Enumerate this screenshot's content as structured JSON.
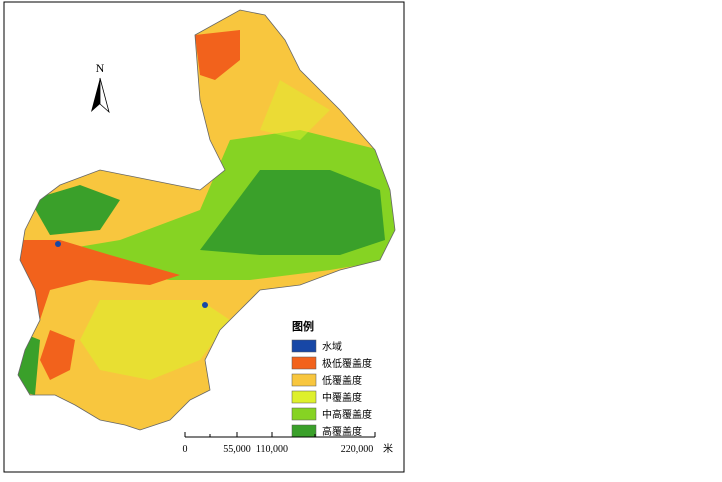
{
  "north": "N",
  "legend": {
    "title": "图例",
    "items": [
      {
        "label": "水域",
        "color": "#1747a6"
      },
      {
        "label": "极低覆盖度",
        "color": "#f2621c"
      },
      {
        "label": "低覆盖度",
        "color": "#f8c63e"
      },
      {
        "label": "中覆盖度",
        "color": "#def02c"
      },
      {
        "label": "中高覆盖度",
        "color": "#86d323"
      },
      {
        "label": "高覆盖度",
        "color": "#3aa02a"
      }
    ]
  },
  "scale_bar": {
    "labels": [
      "0",
      "55,000",
      "110,000",
      "220,000"
    ],
    "unit": "米"
  }
}
